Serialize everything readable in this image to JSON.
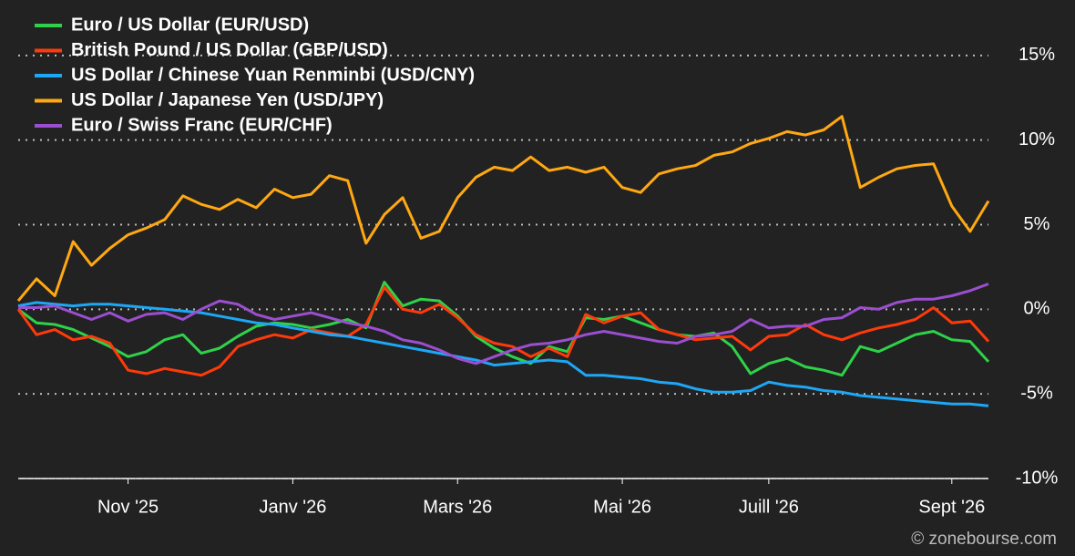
{
  "chart_data": {
    "type": "line",
    "categories": [
      null,
      null,
      null,
      null,
      null,
      null,
      "Nov '25",
      null,
      null,
      null,
      null,
      null,
      null,
      null,
      null,
      "Janv '26",
      null,
      null,
      null,
      null,
      null,
      null,
      null,
      null,
      "Mars '26",
      null,
      null,
      null,
      null,
      null,
      null,
      null,
      null,
      "Mai '26",
      null,
      null,
      null,
      null,
      null,
      null,
      null,
      "Juill '26",
      null,
      null,
      null,
      null,
      null,
      null,
      null,
      null,
      null,
      "Sept '26",
      null,
      null
    ],
    "series": [
      {
        "name": "Euro / US Dollar (EUR/USD)",
        "color": "#2fd14a",
        "values": [
          0,
          -0.8,
          -0.9,
          -1.2,
          -1.7,
          -2.2,
          -2.8,
          -2.5,
          -1.8,
          -1.5,
          -2.6,
          -2.3,
          -1.6,
          -1,
          -0.8,
          -0.9,
          -1.1,
          -0.9,
          -0.6,
          -1.1,
          1.6,
          0.2,
          0.6,
          0.5,
          -0.4,
          -1.6,
          -2.3,
          -2.8,
          -3.2,
          -2.2,
          -2.5,
          -0.5,
          -0.6,
          -0.4,
          -0.8,
          -1.2,
          -1.5,
          -1.6,
          -1.4,
          -2.2,
          -3.8,
          -3.2,
          -2.9,
          -3.4,
          -3.6,
          -3.9,
          -2.2,
          -2.5,
          -2,
          -1.5,
          -1.3,
          -1.8,
          -1.9,
          -3.1
        ]
      },
      {
        "name": "British Pound / US Dollar (GBP/USD)",
        "color": "#ff3a0a",
        "values": [
          0,
          -1.5,
          -1.2,
          -1.8,
          -1.6,
          -2,
          -3.6,
          -3.8,
          -3.5,
          -3.7,
          -3.9,
          -3.4,
          -2.2,
          -1.8,
          -1.5,
          -1.7,
          -1.2,
          -1.4,
          -1.6,
          -0.9,
          1.3,
          0,
          -0.2,
          0.3,
          -0.5,
          -1.5,
          -2,
          -2.2,
          -2.8,
          -2.3,
          -2.8,
          -0.3,
          -0.8,
          -0.4,
          -0.2,
          -1.2,
          -1.5,
          -1.8,
          -1.7,
          -1.6,
          -2.4,
          -1.6,
          -1.5,
          -0.9,
          -1.5,
          -1.8,
          -1.4,
          -1.1,
          -0.9,
          -0.6,
          0.1,
          -0.8,
          -0.7,
          -1.9
        ]
      },
      {
        "name": "US Dollar / Chinese Yuan Renminbi (USD/CNY)",
        "color": "#1ea7f5",
        "values": [
          0.2,
          0.4,
          0.3,
          0.2,
          0.3,
          0.3,
          0.2,
          0.1,
          0,
          -0.1,
          -0.2,
          -0.4,
          -0.6,
          -0.8,
          -0.9,
          -1.1,
          -1.3,
          -1.5,
          -1.6,
          -1.8,
          -2,
          -2.2,
          -2.4,
          -2.6,
          -2.8,
          -3,
          -3.3,
          -3.2,
          -3.1,
          -3,
          -3.1,
          -3.9,
          -3.9,
          -4,
          -4.1,
          -4.3,
          -4.4,
          -4.7,
          -4.9,
          -4.9,
          -4.8,
          -4.3,
          -4.5,
          -4.6,
          -4.8,
          -4.9,
          -5.1,
          -5.2,
          -5.3,
          -5.4,
          -5.5,
          -5.6,
          -5.6,
          -5.7
        ]
      },
      {
        "name": "US Dollar / Japanese Yen (USD/JPY)",
        "color": "#ffa812",
        "values": [
          0.5,
          1.8,
          0.8,
          4,
          2.6,
          3.6,
          4.4,
          4.8,
          5.3,
          6.7,
          6.2,
          5.9,
          6.5,
          6,
          7.1,
          6.6,
          6.8,
          7.9,
          7.6,
          3.9,
          5.6,
          6.6,
          4.2,
          4.6,
          6.6,
          7.8,
          8.4,
          8.2,
          9,
          8.2,
          8.4,
          8.1,
          8.4,
          7.2,
          6.9,
          8,
          8.3,
          8.5,
          9.1,
          9.3,
          9.8,
          10.1,
          10.5,
          10.3,
          10.6,
          11.4,
          7.2,
          7.8,
          8.3,
          8.5,
          8.6,
          6.1,
          4.6,
          6.4
        ]
      },
      {
        "name": "Euro / Swiss Franc (EUR/CHF)",
        "color": "#9b4fd0",
        "values": [
          0.1,
          0.1,
          0.2,
          -0.2,
          -0.6,
          -0.2,
          -0.7,
          -0.3,
          -0.2,
          -0.6,
          0,
          0.5,
          0.3,
          -0.3,
          -0.6,
          -0.4,
          -0.2,
          -0.5,
          -0.8,
          -1,
          -1.3,
          -1.8,
          -2,
          -2.4,
          -2.9,
          -3.2,
          -2.8,
          -2.4,
          -2.1,
          -2,
          -1.8,
          -1.5,
          -1.3,
          -1.5,
          -1.7,
          -1.9,
          -2,
          -1.6,
          -1.5,
          -1.3,
          -0.6,
          -1.1,
          -1,
          -1,
          -0.6,
          -0.5,
          0.1,
          0,
          0.4,
          0.6,
          0.6,
          0.8,
          1.1,
          1.5
        ]
      }
    ],
    "ylim": [
      -10,
      17.2
    ],
    "yticks": [
      {
        "value": -10,
        "label": "-10%"
      },
      {
        "value": -5,
        "label": "-5%"
      },
      {
        "value": 0,
        "label": "0%"
      },
      {
        "value": 5,
        "label": "5%"
      },
      {
        "value": 10,
        "label": "10%"
      },
      {
        "value": 15,
        "label": "15%"
      }
    ],
    "grid": true,
    "legend": "top-left",
    "credit": "© zonebourse.com"
  }
}
